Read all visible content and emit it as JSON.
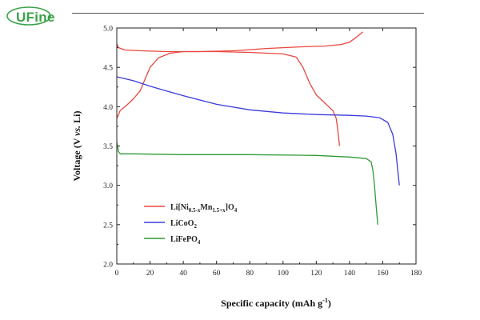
{
  "brand": {
    "logo_text": "UFine",
    "color": "#3aa24a"
  },
  "chart_data": {
    "type": "line",
    "title": "",
    "xlabel_main": "Specific capacity (mAh g",
    "xlabel_sup": "-1",
    "xlabel_end": ")",
    "ylabel_main": "Voltage (V ",
    "ylabel_italic": "vs.",
    "ylabel_end": " Li)",
    "xlim": [
      0,
      180
    ],
    "ylim": [
      2.0,
      5.0
    ],
    "xticks": [
      "0",
      "20",
      "40",
      "60",
      "80",
      "100",
      "120",
      "140",
      "160",
      "180"
    ],
    "yticks": [
      "2.0",
      "2.5",
      "3.0",
      "3.5",
      "4.0",
      "4.5",
      "5.0"
    ],
    "legend_position": "center-left",
    "series": [
      {
        "legend_base": "Li[Ni",
        "legend_parts": [
          {
            "t": "Li[Ni",
            "s": "n"
          },
          {
            "t": "0.5-x",
            "s": "sub"
          },
          {
            "t": "Mn",
            "s": "n"
          },
          {
            "t": "1.5+x",
            "s": "sub"
          },
          {
            "t": "]O",
            "s": "n"
          },
          {
            "t": "4",
            "s": "sub"
          }
        ],
        "color": "#e8473f",
        "curves": [
          {
            "label": "charge",
            "points": [
              [
                0,
                4.8
              ],
              [
                1,
                4.75
              ],
              [
                5,
                4.72
              ],
              [
                15,
                4.71
              ],
              [
                30,
                4.7
              ],
              [
                50,
                4.7
              ],
              [
                70,
                4.71
              ],
              [
                90,
                4.74
              ],
              [
                110,
                4.76
              ],
              [
                125,
                4.77
              ],
              [
                135,
                4.79
              ],
              [
                140,
                4.82
              ],
              [
                144,
                4.88
              ],
              [
                148,
                4.95
              ]
            ]
          },
          {
            "label": "discharge",
            "points": [
              [
                0,
                3.85
              ],
              [
                2,
                3.95
              ],
              [
                6,
                4.02
              ],
              [
                10,
                4.1
              ],
              [
                14,
                4.2
              ],
              [
                17,
                4.35
              ],
              [
                20,
                4.5
              ],
              [
                25,
                4.62
              ],
              [
                32,
                4.68
              ],
              [
                40,
                4.7
              ],
              [
                60,
                4.7
              ],
              [
                80,
                4.69
              ],
              [
                100,
                4.67
              ],
              [
                108,
                4.63
              ],
              [
                112,
                4.5
              ],
              [
                116,
                4.3
              ],
              [
                120,
                4.15
              ],
              [
                125,
                4.05
              ],
              [
                130,
                3.95
              ],
              [
                132,
                3.85
              ],
              [
                133,
                3.7
              ],
              [
                134,
                3.5
              ]
            ]
          }
        ]
      },
      {
        "legend_parts": [
          {
            "t": "LiCoO",
            "s": "n"
          },
          {
            "t": "2",
            "s": "sub"
          }
        ],
        "color": "#3b3bd9",
        "curves": [
          {
            "label": "discharge",
            "points": [
              [
                0,
                4.38
              ],
              [
                10,
                4.33
              ],
              [
                20,
                4.26
              ],
              [
                30,
                4.2
              ],
              [
                40,
                4.14
              ],
              [
                60,
                4.03
              ],
              [
                80,
                3.96
              ],
              [
                100,
                3.92
              ],
              [
                120,
                3.9
              ],
              [
                140,
                3.89
              ],
              [
                150,
                3.88
              ],
              [
                158,
                3.86
              ],
              [
                163,
                3.8
              ],
              [
                166,
                3.65
              ],
              [
                168,
                3.4
              ],
              [
                169,
                3.2
              ],
              [
                170,
                3.0
              ]
            ]
          }
        ]
      },
      {
        "legend_parts": [
          {
            "t": "LiFePO",
            "s": "n"
          },
          {
            "t": "4",
            "s": "sub"
          }
        ],
        "color": "#2f9a36",
        "curves": [
          {
            "label": "discharge",
            "points": [
              [
                0,
                3.55
              ],
              [
                1,
                3.43
              ],
              [
                2,
                3.4
              ],
              [
                10,
                3.4
              ],
              [
                40,
                3.39
              ],
              [
                80,
                3.39
              ],
              [
                120,
                3.38
              ],
              [
                140,
                3.36
              ],
              [
                150,
                3.34
              ],
              [
                153,
                3.3
              ],
              [
                154,
                3.2
              ],
              [
                155,
                3.0
              ],
              [
                156,
                2.75
              ],
              [
                157,
                2.5
              ]
            ]
          }
        ]
      }
    ]
  }
}
